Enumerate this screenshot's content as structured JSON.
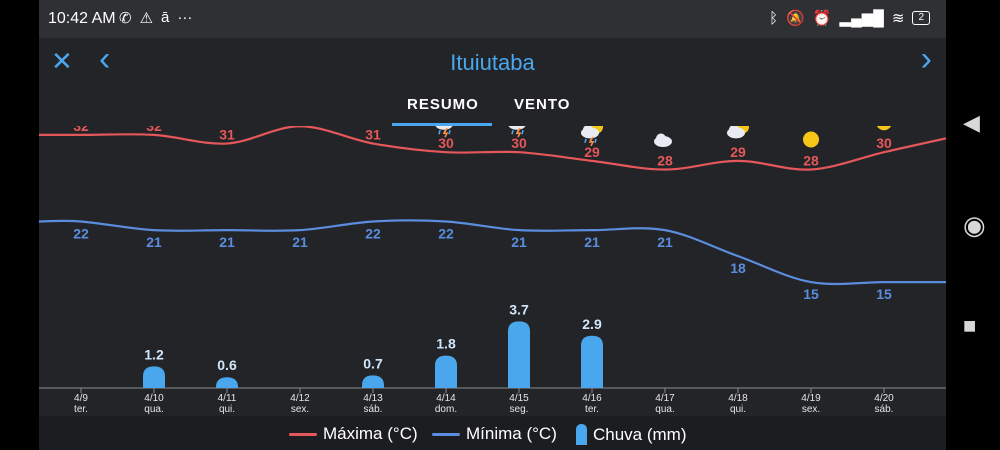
{
  "status_bar": {
    "time": "10:42 AM",
    "left_icons": [
      "whatsapp-icon",
      "warning-icon",
      "amazon-icon",
      "more-icon"
    ],
    "right_icons": [
      "bluetooth-icon",
      "mute-icon",
      "alarm-icon",
      "signal-icon",
      "wifi-icon"
    ],
    "battery": "2"
  },
  "app_bar": {
    "title": "Ituiutaba",
    "close_icon": "✕",
    "prev_icon": "‹",
    "next_icon": "›"
  },
  "tabs": [
    {
      "label": "RESUMO",
      "active": true
    },
    {
      "label": "VENTO",
      "active": false
    }
  ],
  "colors": {
    "max": "#e4575a",
    "min": "#5b8ddf",
    "rain": "#4aa7ee",
    "accent": "#4aa7ee"
  },
  "chart_data": {
    "type": "line",
    "categories": [
      "4/9",
      "4/10",
      "4/11",
      "4/12",
      "4/13",
      "4/14",
      "4/15",
      "4/16",
      "4/17",
      "4/18",
      "4/19",
      "4/20"
    ],
    "weekdays": [
      "ter.",
      "qua.",
      "qui.",
      "sex.",
      "sáb.",
      "dom.",
      "seg.",
      "ter.",
      "qua.",
      "qui.",
      "sex.",
      "sáb."
    ],
    "icons": [
      "partly-cloudy",
      "thunderstorm",
      "rain",
      "partly-cloudy",
      "rain",
      "thunderstorm",
      "thunderstorm",
      "thunderstorm",
      "cloudy",
      "partly-cloudy",
      "sunny",
      "sunny"
    ],
    "series": [
      {
        "name": "Máxima (°C)",
        "values": [
          32,
          32,
          31,
          33,
          31,
          30,
          30,
          29,
          28,
          29,
          28,
          30
        ]
      },
      {
        "name": "Mínima (°C)",
        "values": [
          22,
          21,
          21,
          21,
          22,
          22,
          21,
          21,
          21,
          18,
          15,
          15
        ]
      },
      {
        "name": "Chuva (mm)",
        "type": "bar",
        "values": [
          null,
          1.2,
          0.6,
          null,
          0.7,
          1.8,
          3.7,
          2.9,
          null,
          null,
          null,
          null
        ]
      }
    ]
  },
  "legend": [
    {
      "label": "Máxima (°C)",
      "kind": "line",
      "color": "#e4575a"
    },
    {
      "label": "Mínima (°C)",
      "kind": "line",
      "color": "#5b8ddf"
    },
    {
      "label": "Chuva (mm)",
      "kind": "bar",
      "color": "#4aa7ee"
    }
  ],
  "nav_bar": [
    "back-icon",
    "home-icon",
    "recents-icon"
  ]
}
